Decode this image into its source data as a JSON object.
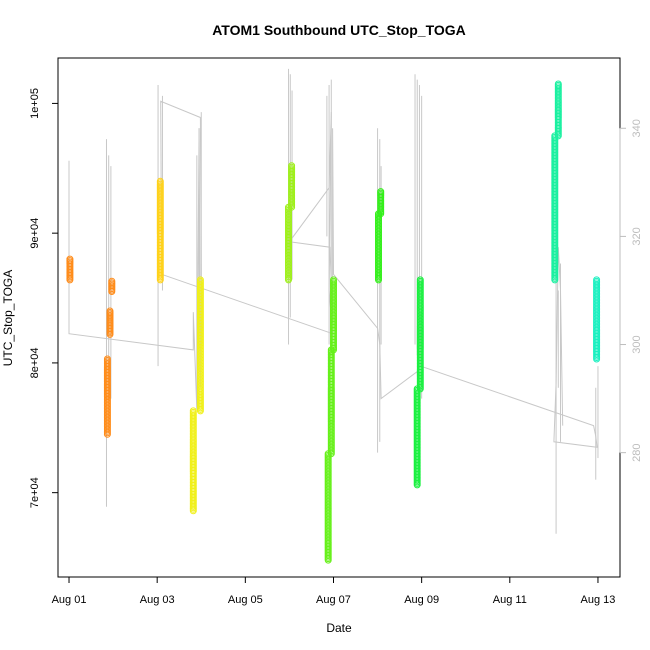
{
  "chart_data": {
    "type": "scatter",
    "title": "ATOM1 Southbound UTC_Stop_TOGA",
    "xlabel": "Date",
    "ylabel": "UTC_Stop_TOGA",
    "x_ticks": [
      "Aug 01",
      "Aug 03",
      "Aug 05",
      "Aug 07",
      "Aug 09",
      "Aug 11",
      "Aug 13"
    ],
    "x_tick_days": [
      1,
      3,
      5,
      7,
      9,
      11,
      13
    ],
    "xlim": [
      0.75,
      13.5
    ],
    "y_ticks": [
      70000,
      80000,
      90000,
      100000
    ],
    "y_tick_labels": [
      "7e+04",
      "8e+04",
      "9e+04",
      "1e+05"
    ],
    "ylim": [
      63500,
      103500
    ],
    "y2_ticks": [
      280,
      300,
      320,
      340
    ],
    "y2lim": [
      257,
      353
    ],
    "grid": false,
    "legend": "none",
    "colors": {
      "secondary_line": "#c8c8c8",
      "axis": "#000000",
      "axis_right": "#bdbdbd"
    },
    "series": [
      {
        "color": "#ff8c1a",
        "points": [
          [
            1.02,
            86400,
            88000
          ]
        ]
      },
      {
        "color": "#ff8c1a",
        "points": [
          [
            1.87,
            74500,
            80300
          ],
          [
            1.93,
            82200,
            84000
          ],
          [
            1.97,
            85500,
            86300
          ]
        ]
      },
      {
        "color": "#ffd21a",
        "points": [
          [
            3.07,
            86400,
            94000
          ]
        ]
      },
      {
        "color": "#f0f01a",
        "points": [
          [
            3.82,
            68600,
            76300
          ],
          [
            3.98,
            76300,
            86400
          ]
        ]
      },
      {
        "color": "#9ef01a",
        "points": [
          [
            5.98,
            86400,
            92000
          ],
          [
            6.05,
            92000,
            95200
          ]
        ]
      },
      {
        "color": "#66f01a",
        "points": [
          [
            6.88,
            64800,
            73000
          ],
          [
            6.95,
            73000,
            81000
          ],
          [
            7.0,
            81000,
            86400
          ]
        ]
      },
      {
        "color": "#33f01a",
        "points": [
          [
            8.02,
            86400,
            91500
          ],
          [
            8.07,
            91500,
            93200
          ]
        ]
      },
      {
        "color": "#1af040",
        "points": [
          [
            8.9,
            70600,
            78000
          ],
          [
            8.97,
            78000,
            86400
          ]
        ]
      },
      {
        "color": "#1af0a0",
        "points": [
          [
            12.02,
            86400,
            97500
          ],
          [
            12.1,
            97500,
            101500
          ]
        ]
      },
      {
        "color": "#1af0c0",
        "points": [
          [
            12.97,
            80300,
            86400
          ]
        ]
      }
    ],
    "secondary_series": {
      "axis": "right",
      "color": "#c8c8c8",
      "path": [
        [
          1.0,
          334
        ],
        [
          1.0,
          302
        ],
        [
          3.82,
          299
        ],
        [
          3.82,
          306
        ],
        [
          3.9,
          288
        ],
        [
          3.95,
          340
        ],
        [
          3.98,
          292
        ],
        [
          4.0,
          310
        ],
        [
          3.98,
          342
        ],
        [
          3.08,
          345
        ],
        [
          3.1,
          313
        ],
        [
          6.98,
          302
        ],
        [
          6.9,
          310
        ],
        [
          6.95,
          343
        ],
        [
          6.9,
          329
        ],
        [
          6.0,
          319
        ],
        [
          6.92,
          318
        ],
        [
          6.98,
          304
        ],
        [
          6.98,
          340
        ],
        [
          7.0,
          313
        ],
        [
          8.0,
          303
        ],
        [
          8.05,
          300
        ],
        [
          8.08,
          290
        ],
        [
          8.9,
          295
        ],
        [
          8.92,
          292
        ],
        [
          8.97,
          306
        ],
        [
          8.98,
          296
        ],
        [
          12.9,
          285
        ],
        [
          12.95,
          283
        ],
        [
          12.98,
          281
        ],
        [
          12.0,
          282
        ],
        [
          12.05,
          293
        ],
        [
          12.1,
          318
        ],
        [
          12.15,
          310
        ],
        [
          12.2,
          285
        ]
      ],
      "spikes": [
        [
          1.85,
          270,
          338
        ],
        [
          1.9,
          290,
          335
        ],
        [
          1.95,
          290,
          333
        ],
        [
          3.02,
          296,
          348
        ],
        [
          3.12,
          310,
          346
        ],
        [
          3.9,
          290,
          335
        ],
        [
          3.95,
          295,
          340
        ],
        [
          4.0,
          300,
          343
        ],
        [
          5.98,
          300,
          351
        ],
        [
          6.02,
          305,
          350
        ],
        [
          6.06,
          312,
          347
        ],
        [
          6.85,
          320,
          346
        ],
        [
          6.9,
          300,
          348
        ],
        [
          6.95,
          300,
          349
        ],
        [
          8.0,
          280,
          340
        ],
        [
          8.05,
          282,
          338
        ],
        [
          8.08,
          300,
          333
        ],
        [
          8.85,
          300,
          350
        ],
        [
          8.9,
          298,
          349
        ],
        [
          8.95,
          299,
          348
        ],
        [
          9.0,
          290,
          346
        ],
        [
          12.05,
          265,
          318
        ],
        [
          12.1,
          292,
          310
        ],
        [
          12.15,
          282,
          315
        ],
        [
          12.95,
          275,
          292
        ],
        [
          13.0,
          279,
          296
        ]
      ]
    }
  }
}
